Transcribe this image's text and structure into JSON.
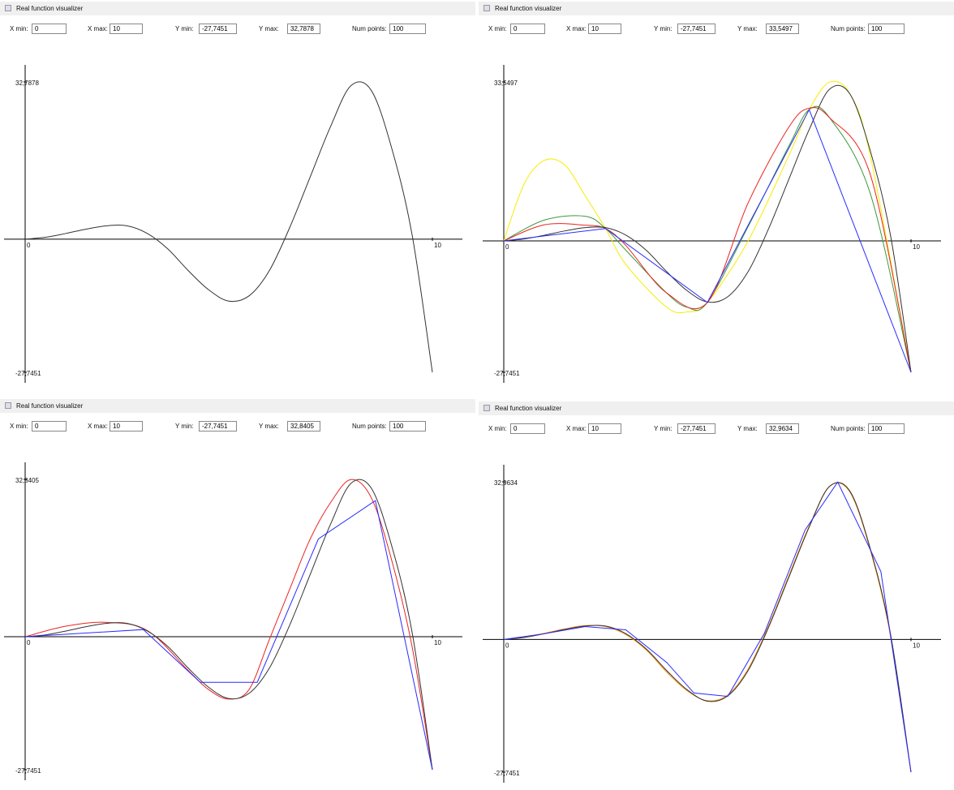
{
  "panels": [
    {
      "title": "Real function visualizer",
      "fields": [
        {
          "label": "X min:",
          "value": "0"
        },
        {
          "label": "X max:",
          "value": "10"
        },
        {
          "label": "Y min:",
          "value": "-27,7451"
        },
        {
          "label": "Y max:",
          "value": "32,7878"
        },
        {
          "label": "Num points:",
          "value": "100"
        }
      ],
      "xlim": [
        0,
        10
      ],
      "ylim": [
        -27.7451,
        32.7878
      ],
      "xticks": [
        0,
        10
      ],
      "yticks": [
        {
          "value": 32.7878,
          "label": "32,7878"
        },
        {
          "value": -27.7451,
          "label": "-27,7451"
        }
      ],
      "series": [
        {
          "color": "#333333",
          "smooth": true,
          "x": [
            0,
            0.5,
            1,
            1.5,
            2,
            2.5,
            3,
            3.5,
            4,
            4.5,
            5,
            5.5,
            6,
            6.5,
            7,
            7.5,
            8,
            8.5,
            9,
            9.5,
            10
          ],
          "values": [
            0,
            0.4,
            1.2,
            2.1,
            2.8,
            2.8,
            1.2,
            -2,
            -6.5,
            -10.5,
            -12.9,
            -11.8,
            -6.5,
            2.5,
            13,
            23.5,
            32,
            31,
            19,
            1,
            -27.7451
          ]
        }
      ]
    },
    {
      "title": "Real function visualizer",
      "fields": [
        {
          "label": "X min:",
          "value": "0"
        },
        {
          "label": "X max:",
          "value": "10"
        },
        {
          "label": "Y min:",
          "value": "-27,7451"
        },
        {
          "label": "Y max:",
          "value": "33,5497"
        },
        {
          "label": "Num points:",
          "value": "100"
        }
      ],
      "xlim": [
        0,
        10
      ],
      "ylim": [
        -27.7451,
        33.5497
      ],
      "xticks": [
        0,
        10
      ],
      "yticks": [
        {
          "value": 33.5497,
          "label": "33,5497"
        },
        {
          "value": -27.7451,
          "label": "-27,7451"
        }
      ],
      "series": [
        {
          "color": "#f5ee00",
          "smooth": true,
          "x": [
            0,
            0.5,
            1,
            1.5,
            2,
            2.5,
            3,
            4,
            4.5,
            5,
            6,
            7,
            7.5,
            8,
            8.5,
            9,
            10
          ],
          "values": [
            0,
            12,
            17,
            16,
            9.5,
            2.6,
            -5,
            -14,
            -15,
            -13,
            0,
            18,
            27.7,
            33.5,
            31,
            18,
            -27.7451
          ]
        },
        {
          "color": "#3a9a3a",
          "smooth": true,
          "x": [
            0,
            1,
            2,
            2.5,
            3,
            4,
            4.5,
            5,
            6,
            7,
            7.5,
            8,
            9,
            10
          ],
          "values": [
            0,
            4.4,
            5.2,
            2.6,
            -2,
            -11,
            -14,
            -13,
            3,
            20,
            27.7,
            26,
            10,
            -27.7451
          ]
        },
        {
          "color": "#ee2222",
          "smooth": true,
          "x": [
            0,
            1,
            2,
            2.5,
            3,
            4,
            5,
            6,
            7,
            7.5,
            8,
            9,
            10
          ],
          "values": [
            0,
            3.4,
            3.3,
            2.6,
            -1,
            -11,
            -13,
            8,
            24,
            28,
            26,
            14,
            -27.7451
          ]
        },
        {
          "color": "#333333",
          "smooth": true,
          "x": [
            0,
            0.5,
            1,
            1.5,
            2,
            2.5,
            3,
            3.5,
            4,
            4.5,
            5,
            5.5,
            6,
            6.5,
            7,
            7.5,
            8,
            8.5,
            9,
            9.5,
            10
          ],
          "values": [
            0,
            0.4,
            1.2,
            2.1,
            2.8,
            2.8,
            1.2,
            -2,
            -6.5,
            -10.5,
            -12.9,
            -11.8,
            -6.5,
            2.5,
            13,
            23.5,
            32,
            31,
            19,
            1,
            -27.7451
          ]
        },
        {
          "color": "#2a2aff",
          "smooth": false,
          "x": [
            0,
            2.5,
            5,
            7.5,
            10
          ],
          "values": [
            0,
            2.6,
            -13,
            27.7,
            -27.7451
          ]
        }
      ]
    },
    {
      "title": "Real function visualizer",
      "fields": [
        {
          "label": "X min:",
          "value": "0"
        },
        {
          "label": "X max:",
          "value": "10"
        },
        {
          "label": "Y min:",
          "value": "-27,7451"
        },
        {
          "label": "Y max:",
          "value": "32,8405"
        },
        {
          "label": "Num points:",
          "value": "100"
        }
      ],
      "xlim": [
        0,
        10
      ],
      "ylim": [
        -27.7451,
        32.8405
      ],
      "xticks": [
        0,
        10
      ],
      "yticks": [
        {
          "value": 32.8405,
          "label": "32,8405"
        },
        {
          "value": -27.7451,
          "label": "-27,7451"
        }
      ],
      "series": [
        {
          "color": "#ee2222",
          "smooth": true,
          "x": [
            0,
            1,
            2,
            3,
            4,
            4.5,
            5,
            5.5,
            6,
            6.5,
            7,
            7.5,
            8,
            8.5,
            9,
            9.5,
            10
          ],
          "values": [
            0,
            2.2,
            3,
            1.3,
            -7,
            -11,
            -13,
            -11,
            -0.5,
            10,
            20.4,
            28,
            32.8,
            29,
            16,
            -2,
            -27.7451
          ]
        },
        {
          "color": "#333333",
          "smooth": true,
          "x": [
            0,
            0.5,
            1,
            1.5,
            2,
            2.5,
            3,
            3.5,
            4,
            4.5,
            5,
            5.5,
            6,
            6.5,
            7,
            7.5,
            8,
            8.5,
            9,
            9.5,
            10
          ],
          "values": [
            0,
            0.4,
            1.2,
            2.1,
            2.8,
            2.8,
            1.2,
            -2,
            -6.5,
            -10.5,
            -12.9,
            -11.8,
            -6.5,
            2.5,
            13,
            23.5,
            32,
            31,
            19,
            1,
            -27.7451
          ]
        },
        {
          "color": "#2a2aff",
          "smooth": false,
          "x": [
            0,
            2.9,
            4.3,
            5.7,
            7.2,
            8.6,
            10
          ],
          "values": [
            0,
            1.5,
            -9.5,
            -9.5,
            20.4,
            28.4,
            -27.7451
          ]
        }
      ]
    },
    {
      "title": "Real function visualizer",
      "fields": [
        {
          "label": "X min:",
          "value": "0"
        },
        {
          "label": "X max:",
          "value": "10"
        },
        {
          "label": "Y min:",
          "value": "-27,7451"
        },
        {
          "label": "Y max:",
          "value": "32,9634"
        },
        {
          "label": "Num points:",
          "value": "100"
        }
      ],
      "xlim": [
        0,
        10
      ],
      "ylim": [
        -27.7451,
        32.9634
      ],
      "xticks": [
        0,
        10
      ],
      "yticks": [
        {
          "value": 32.9634,
          "label": "32,9634"
        },
        {
          "value": -27.7451,
          "label": "-27,7451"
        }
      ],
      "series": [
        {
          "color": "#ff8c00",
          "smooth": true,
          "x": [
            0,
            0.5,
            1,
            1.5,
            2,
            2.5,
            3,
            3.5,
            4,
            4.5,
            5,
            5.5,
            6,
            6.5,
            7,
            7.5,
            8,
            8.5,
            9,
            9.5,
            10
          ],
          "values": [
            0,
            0.5,
            1.3,
            2.2,
            2.9,
            2.7,
            1,
            -2.2,
            -6.8,
            -10.7,
            -12.8,
            -11.6,
            -6.2,
            2.8,
            13.3,
            23.7,
            32,
            30.8,
            18.7,
            0.6,
            -27.7451
          ]
        },
        {
          "color": "#333333",
          "smooth": true,
          "x": [
            0,
            0.5,
            1,
            1.5,
            2,
            2.5,
            3,
            3.5,
            4,
            4.5,
            5,
            5.5,
            6,
            6.5,
            7,
            7.5,
            8,
            8.5,
            9,
            9.5,
            10
          ],
          "values": [
            0,
            0.4,
            1.2,
            2.1,
            2.8,
            2.8,
            1.2,
            -2,
            -6.5,
            -10.5,
            -12.9,
            -11.8,
            -6.5,
            2.5,
            13,
            23.5,
            32,
            31,
            19,
            1,
            -27.7451
          ]
        },
        {
          "color": "#2a2aff",
          "smooth": false,
          "x": [
            0,
            1,
            2,
            3,
            4,
            4.67,
            5.5,
            6.4,
            7.4,
            8.2,
            9.26,
            10
          ],
          "values": [
            0,
            1.2,
            2.7,
            2,
            -4.8,
            -11.2,
            -11.9,
            1.3,
            22.9,
            32.9,
            14.2,
            -27.7451
          ]
        }
      ]
    }
  ]
}
